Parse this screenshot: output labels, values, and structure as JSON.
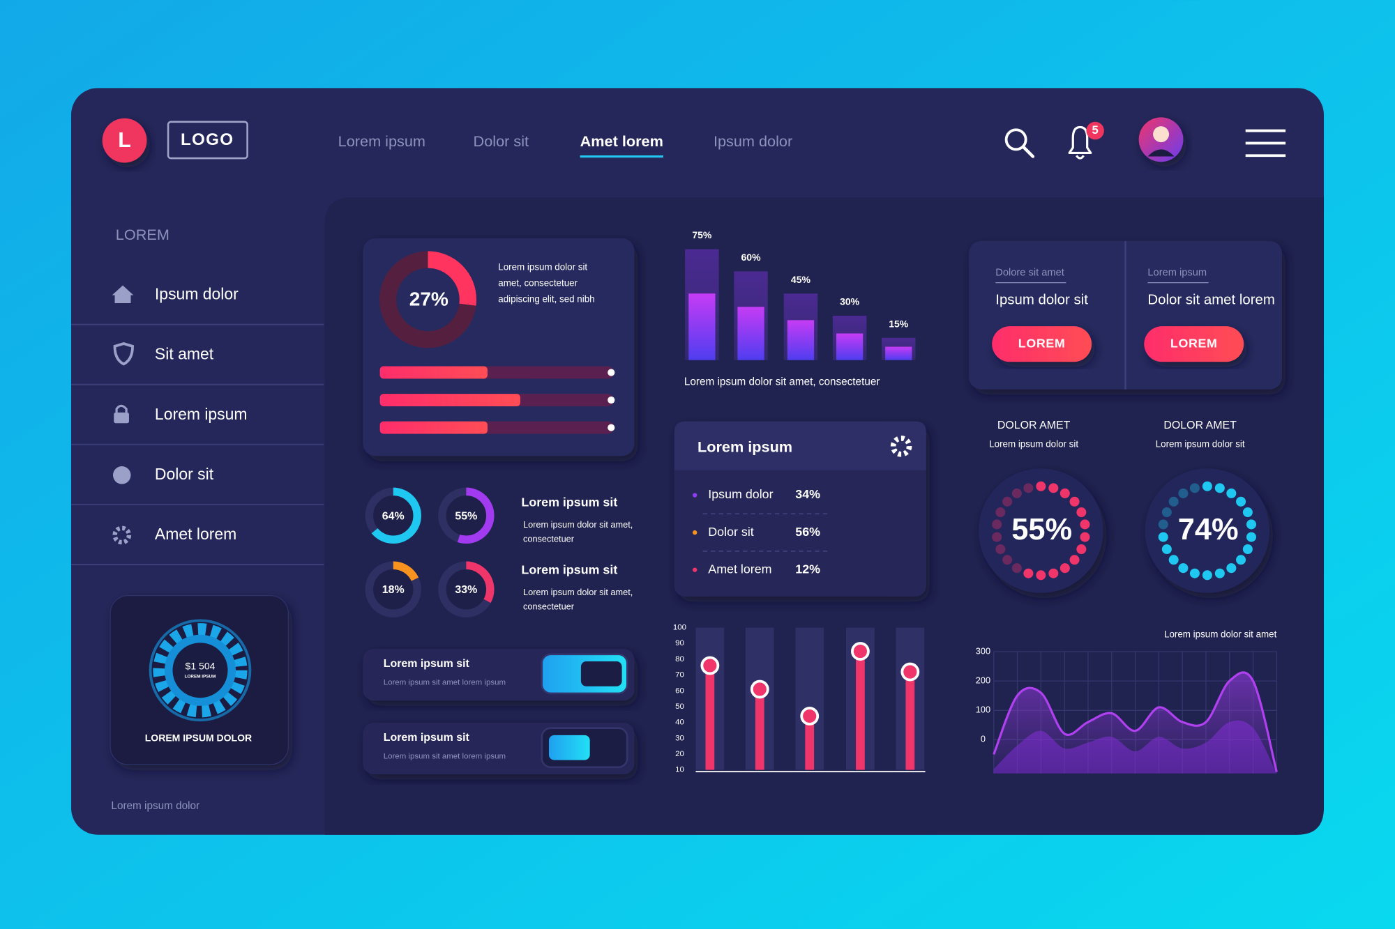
{
  "header": {
    "logo_letter": "L",
    "logo": "LOGO",
    "nav": [
      "Lorem ipsum",
      "Dolor sit",
      "Amet lorem",
      "Ipsum dolor"
    ],
    "active_nav": 2,
    "notifications": 5
  },
  "sidebar": {
    "heading": "LOREM",
    "items": [
      "Ipsum dolor",
      "Sit amet",
      "Lorem ipsum",
      "Dolor sit",
      "Amet lorem"
    ],
    "card": {
      "amount": "$1 504",
      "caption": "LOREM IPSUM",
      "label": "LOREM IPSUM DOLOR"
    },
    "footer": "Lorem ipsum dolor"
  },
  "summary_card": {
    "donut": {
      "value": 27,
      "label": "27%"
    },
    "text": [
      "Lorem ipsum dolor sit",
      "amet, consectetuer",
      "adipiscing elit, sed nibh"
    ],
    "bars": [
      46,
      60,
      46
    ]
  },
  "mini_donuts": [
    {
      "value": 64,
      "label": "64%",
      "color": "#1fc8f0"
    },
    {
      "value": 55,
      "label": "55%",
      "color": "#a23bf0"
    },
    {
      "value": 18,
      "label": "18%",
      "color": "#f7931e"
    },
    {
      "value": 33,
      "label": "33%",
      "color": "#f0356b"
    }
  ],
  "info_blocks": [
    {
      "title": "Lorem ipsum sit",
      "text": [
        "Lorem ipsum dolor sit amet,",
        "consectetuer"
      ]
    },
    {
      "title": "Lorem ipsum sit",
      "text": [
        "Lorem ipsum dolor sit amet,",
        "consectetuer"
      ]
    }
  ],
  "toggles": [
    {
      "title": "Lorem ipsum sit",
      "text": "Lorem ipsum sit amet lorem ipsum",
      "on": true
    },
    {
      "title": "Lorem ipsum sit",
      "text": "Lorem ipsum sit amet lorem ipsum",
      "on": false
    }
  ],
  "bar_chart": {
    "type": "bar",
    "values": [
      75,
      60,
      45,
      30,
      15
    ],
    "value_labels": [
      "75%",
      "60%",
      "45%",
      "30%",
      "15%"
    ],
    "ylim": [
      0,
      80
    ],
    "caption": "Lorem ipsum dolor sit amet, consectetuer"
  },
  "top_cards": [
    {
      "label": "Dolore sit amet",
      "title": "Ipsum dolor sit",
      "button": "LOREM"
    },
    {
      "label": "Lorem ipsum",
      "title": "Dolor sit amet lorem",
      "button": "LOREM"
    }
  ],
  "list_panel": {
    "title": "Lorem ipsum",
    "items": [
      {
        "name": "Ipsum dolor",
        "label": "34%",
        "color": "#8a3ff0"
      },
      {
        "name": "Dolor sit",
        "label": "56%",
        "color": "#f7931e"
      },
      {
        "name": "Amet lorem",
        "label": "12%",
        "color": "#f0356b"
      }
    ]
  },
  "rings": [
    {
      "title": "DOLOR AMET",
      "subtitle": "Lorem ipsum dolor sit",
      "value": 55,
      "label": "55%",
      "color": "#f0356b"
    },
    {
      "title": "DOLOR AMET",
      "subtitle": "Lorem ipsum dolor sit",
      "value": 74,
      "label": "74%",
      "color": "#1fc8f0"
    }
  ],
  "lollipop": {
    "type": "lollipop",
    "values": [
      76,
      61,
      44,
      85,
      72
    ],
    "ylim": [
      10,
      100
    ],
    "yticks": [
      10,
      20,
      30,
      40,
      50,
      60,
      70,
      80,
      90,
      100
    ],
    "color": "#f0356b"
  },
  "area_chart": {
    "type": "area",
    "title": "Lorem ipsum dolor sit amet",
    "ylim": [
      -115,
      300
    ],
    "yticks": [
      0,
      100,
      200,
      300
    ],
    "grid": true,
    "series": [
      {
        "color": "#b040f0",
        "values": [
          -50,
          150,
          160,
          20,
          60,
          90,
          30,
          110,
          60,
          60,
          200,
          200,
          -110
        ]
      },
      {
        "color": "#7a2ad0",
        "values": [
          -100,
          -20,
          30,
          -30,
          -10,
          10,
          -40,
          10,
          -30,
          -10,
          60,
          40,
          -115
        ]
      }
    ]
  }
}
